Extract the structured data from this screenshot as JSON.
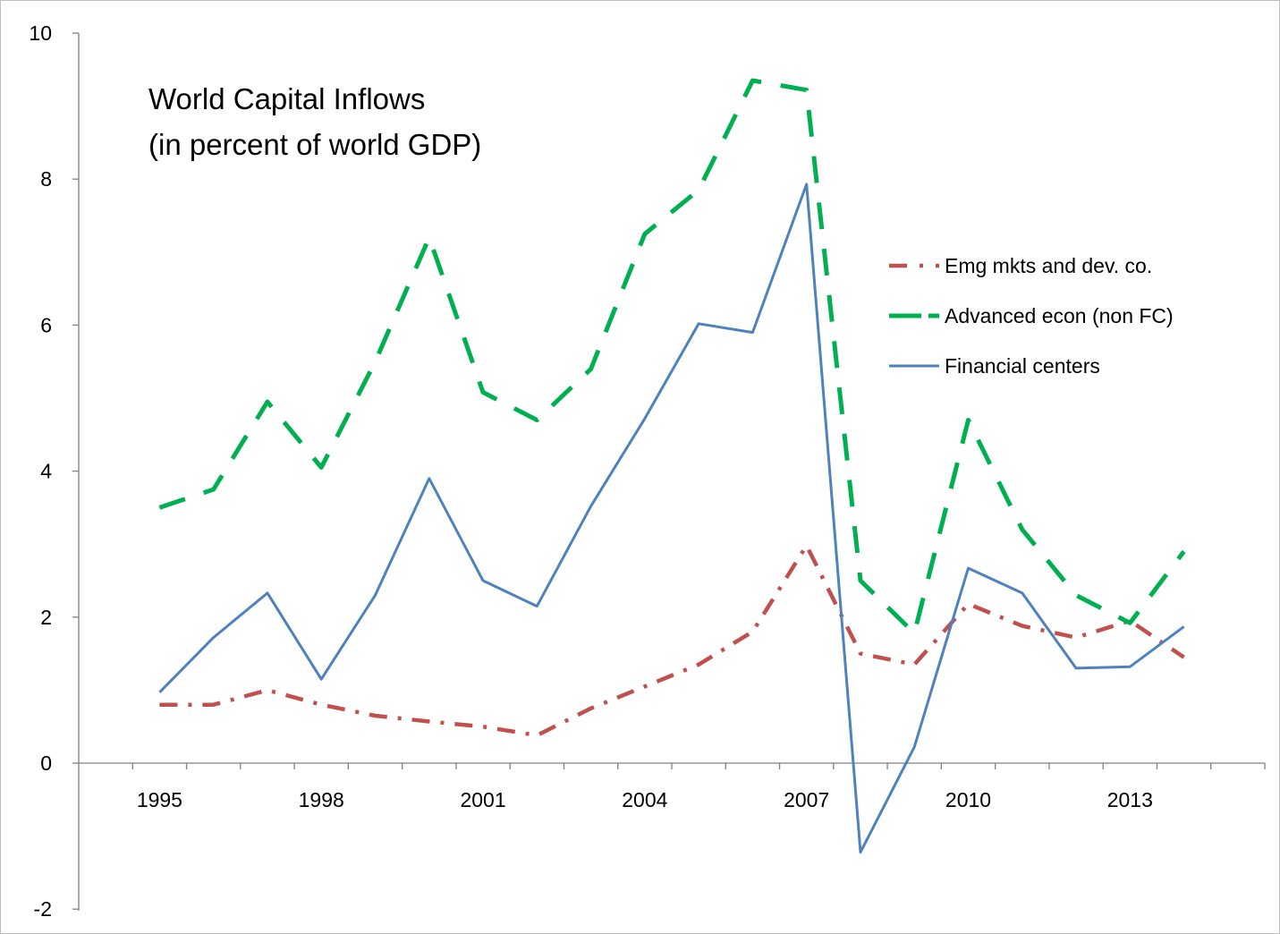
{
  "chart_data": {
    "type": "line",
    "title_lines": [
      "World Capital Inflows",
      "(in percent of world GDP)"
    ],
    "xlabel": "",
    "ylabel": "",
    "x": [
      1995,
      1996,
      1997,
      1998,
      1999,
      2000,
      2001,
      2002,
      2003,
      2004,
      2005,
      2006,
      2007,
      2008,
      2009,
      2010,
      2011,
      2012,
      2013,
      2014
    ],
    "x_tick_labels": [
      "1995",
      "1998",
      "2001",
      "2004",
      "2007",
      "2010",
      "2013"
    ],
    "x_tick_values": [
      1995,
      1998,
      2001,
      2004,
      2007,
      2010,
      2013
    ],
    "ylim": [
      -2,
      10
    ],
    "y_ticks": [
      -2,
      0,
      2,
      4,
      6,
      8,
      10
    ],
    "y_tick_labels": [
      "-2",
      "0",
      "2",
      "4",
      "6",
      "8",
      "10"
    ],
    "grid": false,
    "legend_position": "right",
    "series": [
      {
        "name": "Emg mkts and dev. co.",
        "color": "#c0504d",
        "dash": "dash-dot",
        "values": [
          0.8,
          0.8,
          1.0,
          0.8,
          0.65,
          0.57,
          0.5,
          0.38,
          0.75,
          1.05,
          1.35,
          1.8,
          2.98,
          1.5,
          1.35,
          2.18,
          1.88,
          1.72,
          1.95,
          1.45
        ]
      },
      {
        "name": "Advanced econ (non FC)",
        "color": "#00b050",
        "dash": "long-dash",
        "values": [
          3.5,
          3.75,
          4.95,
          4.05,
          5.5,
          7.2,
          5.08,
          4.7,
          5.4,
          7.25,
          7.85,
          9.35,
          9.22,
          2.5,
          1.78,
          4.7,
          3.2,
          2.3,
          1.92,
          2.9
        ]
      },
      {
        "name": "Financial centers",
        "color": "#4f81bd",
        "dash": "solid",
        "values": [
          0.97,
          1.72,
          2.33,
          1.15,
          2.3,
          3.9,
          2.5,
          2.15,
          3.52,
          4.72,
          6.02,
          5.9,
          7.93,
          -1.22,
          0.22,
          2.67,
          2.33,
          1.3,
          1.32,
          1.87
        ]
      }
    ]
  }
}
